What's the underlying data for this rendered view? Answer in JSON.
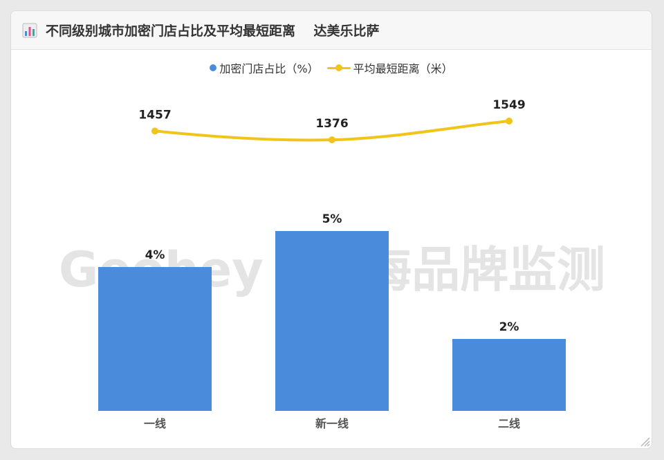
{
  "page": {
    "title": "不同级别城市加密门店占比及平均最短距离    达美乐比萨"
  },
  "watermark": "Geohey | 极海品牌监测",
  "colors": {
    "bar": "#4a8bdc",
    "line": "#f0c419",
    "text": "#333333",
    "watermark": "#e4e4e4"
  },
  "chart_data": {
    "type": "bar",
    "categories": [
      "一线",
      "新一线",
      "二线"
    ],
    "series": [
      {
        "name": "加密门店占比（%）",
        "type": "bar",
        "values": [
          4,
          5,
          2
        ],
        "labels": [
          "4%",
          "5%",
          "2%"
        ]
      },
      {
        "name": "平均最短距离（米）",
        "type": "line",
        "values": [
          1457,
          1376,
          1549
        ],
        "labels": [
          "1457",
          "1376",
          "1549"
        ]
      }
    ],
    "legend": "top-center",
    "grid": false
  }
}
